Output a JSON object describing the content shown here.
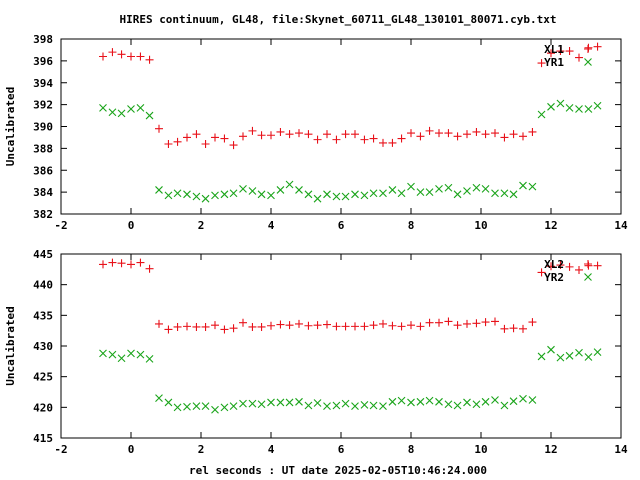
{
  "title": "HIRES continuum, GL48, file:Skynet_60711_GL48_130101_80071.cyb.txt",
  "xlabel": "rel seconds : UT date 2025-02-05T10:46:24.000",
  "colors": {
    "red": "#e8121a",
    "green": "#1aa41a"
  },
  "chart_data": [
    {
      "type": "scatter",
      "ylabel": "Uncalibrated",
      "xlim": [
        -2,
        14
      ],
      "ylim": [
        382,
        398
      ],
      "xticks": [
        -2,
        0,
        2,
        4,
        6,
        8,
        10,
        12,
        14
      ],
      "yticks": [
        382,
        384,
        386,
        388,
        390,
        392,
        394,
        396,
        398
      ],
      "legend": [
        "XL1",
        "YR1"
      ],
      "series": [
        {
          "name": "XL1",
          "marker": "plus",
          "color": "#e8121a",
          "x": [
            -0.8,
            -0.53,
            -0.27,
            0.0,
            0.27,
            0.53,
            0.8,
            1.07,
            1.33,
            1.6,
            1.87,
            2.13,
            2.4,
            2.67,
            2.93,
            3.2,
            3.47,
            3.73,
            4.0,
            4.27,
            4.53,
            4.8,
            5.07,
            5.33,
            5.6,
            5.87,
            6.13,
            6.4,
            6.67,
            6.93,
            7.2,
            7.47,
            7.73,
            8.0,
            8.27,
            8.53,
            8.8,
            9.07,
            9.33,
            9.6,
            9.87,
            10.13,
            10.4,
            10.67,
            10.93,
            11.2,
            11.47,
            11.73,
            12.0,
            12.27,
            12.53,
            12.8,
            13.07,
            13.33
          ],
          "y": [
            396.4,
            396.8,
            396.6,
            396.4,
            396.4,
            396.1,
            389.8,
            388.4,
            388.6,
            389.0,
            389.3,
            388.4,
            389.0,
            388.9,
            388.3,
            389.1,
            389.6,
            389.2,
            389.2,
            389.5,
            389.3,
            389.4,
            389.3,
            388.8,
            389.3,
            388.8,
            389.3,
            389.3,
            388.8,
            388.9,
            388.5,
            388.5,
            388.9,
            389.4,
            389.1,
            389.6,
            389.4,
            389.4,
            389.1,
            389.3,
            389.5,
            389.3,
            389.4,
            389.0,
            389.3,
            389.1,
            389.5,
            395.8,
            396.7,
            396.9,
            396.9,
            396.3,
            397.2,
            397.3
          ]
        },
        {
          "name": "YR1",
          "marker": "cross",
          "color": "#1aa41a",
          "x": [
            -0.8,
            -0.53,
            -0.27,
            0.0,
            0.27,
            0.53,
            0.8,
            1.07,
            1.33,
            1.6,
            1.87,
            2.13,
            2.4,
            2.67,
            2.93,
            3.2,
            3.47,
            3.73,
            4.0,
            4.27,
            4.53,
            4.8,
            5.07,
            5.33,
            5.6,
            5.87,
            6.13,
            6.4,
            6.67,
            6.93,
            7.2,
            7.47,
            7.73,
            8.0,
            8.27,
            8.53,
            8.8,
            9.07,
            9.33,
            9.6,
            9.87,
            10.13,
            10.4,
            10.67,
            10.93,
            11.2,
            11.47,
            11.73,
            12.0,
            12.27,
            12.53,
            12.8,
            13.07,
            13.33
          ],
          "y": [
            391.7,
            391.3,
            391.2,
            391.6,
            391.7,
            391.0,
            384.2,
            383.7,
            383.9,
            383.8,
            383.6,
            383.4,
            383.7,
            383.8,
            383.9,
            384.3,
            384.1,
            383.8,
            383.7,
            384.2,
            384.7,
            384.2,
            383.8,
            383.4,
            383.8,
            383.6,
            383.6,
            383.8,
            383.7,
            383.9,
            383.9,
            384.2,
            383.9,
            384.5,
            384.0,
            384.0,
            384.3,
            384.4,
            383.8,
            384.1,
            384.4,
            384.3,
            383.9,
            383.9,
            383.8,
            384.6,
            384.5,
            391.1,
            391.8,
            392.1,
            391.7,
            391.6,
            391.6,
            391.9
          ]
        }
      ]
    },
    {
      "type": "scatter",
      "ylabel": "Uncalibrated",
      "xlim": [
        -2,
        14
      ],
      "ylim": [
        415,
        445
      ],
      "xticks": [
        -2,
        0,
        2,
        4,
        6,
        8,
        10,
        12,
        14
      ],
      "yticks": [
        415,
        420,
        425,
        430,
        435,
        440,
        445
      ],
      "legend": [
        "XL2",
        "YR2"
      ],
      "series": [
        {
          "name": "XL2",
          "marker": "plus",
          "color": "#e8121a",
          "x": [
            -0.8,
            -0.53,
            -0.27,
            0.0,
            0.27,
            0.53,
            0.8,
            1.07,
            1.33,
            1.6,
            1.87,
            2.13,
            2.4,
            2.67,
            2.93,
            3.2,
            3.47,
            3.73,
            4.0,
            4.27,
            4.53,
            4.8,
            5.07,
            5.33,
            5.6,
            5.87,
            6.13,
            6.4,
            6.67,
            6.93,
            7.2,
            7.47,
            7.73,
            8.0,
            8.27,
            8.53,
            8.8,
            9.07,
            9.33,
            9.6,
            9.87,
            10.13,
            10.4,
            10.67,
            10.93,
            11.2,
            11.47,
            11.73,
            12.0,
            12.27,
            12.53,
            12.8,
            13.07,
            13.33
          ],
          "y": [
            443.3,
            443.6,
            443.5,
            443.3,
            443.6,
            442.6,
            433.6,
            432.7,
            433.1,
            433.2,
            433.1,
            433.1,
            433.4,
            432.7,
            432.9,
            433.8,
            433.1,
            433.1,
            433.3,
            433.5,
            433.4,
            433.6,
            433.3,
            433.4,
            433.5,
            433.2,
            433.2,
            433.2,
            433.2,
            433.4,
            433.6,
            433.3,
            433.2,
            433.4,
            433.2,
            433.8,
            433.8,
            434.0,
            433.4,
            433.6,
            433.7,
            433.9,
            434.0,
            432.8,
            432.9,
            432.8,
            433.9,
            442.0,
            443.0,
            443.2,
            442.9,
            442.4,
            443.1,
            443.1
          ]
        },
        {
          "name": "YR2",
          "marker": "cross",
          "color": "#1aa41a",
          "x": [
            -0.8,
            -0.53,
            -0.27,
            0.0,
            0.27,
            0.53,
            0.8,
            1.07,
            1.33,
            1.6,
            1.87,
            2.13,
            2.4,
            2.67,
            2.93,
            3.2,
            3.47,
            3.73,
            4.0,
            4.27,
            4.53,
            4.8,
            5.07,
            5.33,
            5.6,
            5.87,
            6.13,
            6.4,
            6.67,
            6.93,
            7.2,
            7.47,
            7.73,
            8.0,
            8.27,
            8.53,
            8.8,
            9.07,
            9.33,
            9.6,
            9.87,
            10.13,
            10.4,
            10.67,
            10.93,
            11.2,
            11.47,
            11.73,
            12.0,
            12.27,
            12.53,
            12.8,
            13.07,
            13.33
          ],
          "y": [
            428.8,
            428.6,
            428.0,
            428.8,
            428.6,
            427.9,
            421.5,
            420.8,
            420.0,
            420.1,
            420.2,
            420.2,
            419.6,
            420.0,
            420.2,
            420.6,
            420.6,
            420.5,
            420.8,
            420.8,
            420.8,
            420.9,
            420.3,
            420.7,
            420.2,
            420.3,
            420.6,
            420.2,
            420.4,
            420.3,
            420.2,
            420.9,
            421.1,
            420.8,
            420.9,
            421.1,
            420.9,
            420.5,
            420.3,
            420.8,
            420.5,
            420.9,
            421.2,
            420.3,
            421.0,
            421.4,
            421.2,
            428.3,
            429.4,
            428.1,
            428.4,
            428.9,
            428.2,
            429.0
          ]
        }
      ]
    }
  ]
}
